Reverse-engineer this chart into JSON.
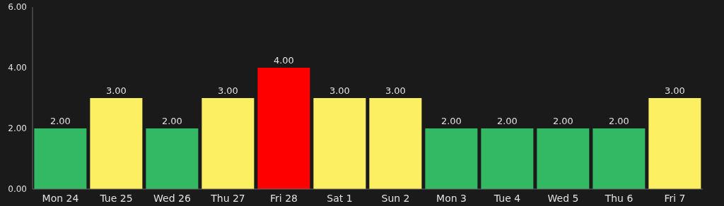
{
  "chart_data": {
    "type": "bar",
    "categories": [
      "Mon 24",
      "Tue 25",
      "Wed 26",
      "Thu 27",
      "Fri 28",
      "Sat 1",
      "Sun 2",
      "Mon 3",
      "Tue 4",
      "Wed 5",
      "Thu 6",
      "Fri 7"
    ],
    "values": [
      2,
      3,
      2,
      3,
      4,
      3,
      3,
      2,
      2,
      2,
      2,
      3
    ],
    "colors": [
      "#33b864",
      "#fdef62",
      "#33b864",
      "#fdef62",
      "#fe0000",
      "#fdef62",
      "#fdef62",
      "#33b864",
      "#33b864",
      "#33b864",
      "#33b864",
      "#fdef62"
    ],
    "value_labels": [
      "2.00",
      "3.00",
      "2.00",
      "3.00",
      "4.00",
      "3.00",
      "3.00",
      "2.00",
      "2.00",
      "2.00",
      "2.00",
      "3.00"
    ],
    "ylim": [
      0,
      6
    ],
    "yticks": [
      {
        "value": 0,
        "label": "0.00"
      },
      {
        "value": 2,
        "label": "2.00"
      },
      {
        "value": 4,
        "label": "4.00"
      },
      {
        "value": 6,
        "label": "6.00"
      }
    ],
    "grid": false
  }
}
